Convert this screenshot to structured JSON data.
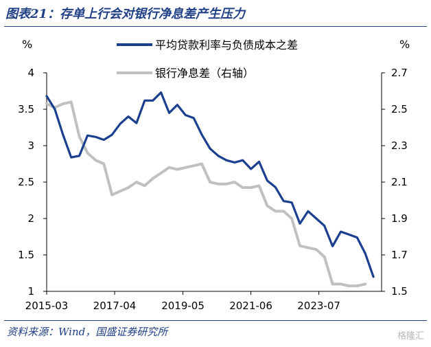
{
  "figure": {
    "title": "图表21：存单上行会对银行净息差产生压力",
    "source": "资料来源：Wind，国盛证券研究所",
    "watermark": "格隆汇"
  },
  "chart_data": {
    "type": "line",
    "x_ticks": [
      "2015-03",
      "2017-04",
      "2019-05",
      "2021-06",
      "2023-07"
    ],
    "left_axis": {
      "unit": "%",
      "ylim": [
        1,
        4
      ],
      "ticks": [
        "1",
        "1.5",
        "2",
        "2.5",
        "3",
        "3.5",
        "4"
      ]
    },
    "right_axis": {
      "unit": "%",
      "ylim": [
        1.5,
        2.7
      ],
      "ticks": [
        "1.5",
        "1.7",
        "1.9",
        "2.1",
        "2.3",
        "2.5",
        "2.7"
      ]
    },
    "legend_position": "top",
    "series": [
      {
        "name": "平均贷款利率与负债成本之差",
        "axis": "left",
        "color": "#1a3f8f",
        "x": [
          2015.25,
          2015.5,
          2015.75,
          2016.0,
          2016.25,
          2016.5,
          2016.75,
          2017.0,
          2017.25,
          2017.5,
          2017.75,
          2018.0,
          2018.25,
          2018.5,
          2018.75,
          2019.0,
          2019.25,
          2019.5,
          2019.75,
          2020.0,
          2020.25,
          2020.5,
          2020.75,
          2021.0,
          2021.25,
          2021.5,
          2021.75,
          2022.0,
          2022.25,
          2022.5,
          2022.75,
          2023.0,
          2023.25,
          2023.5,
          2023.75,
          2024.0,
          2024.25,
          2024.5,
          2024.75,
          2025.0,
          2025.25
        ],
        "values": [
          3.68,
          3.5,
          3.15,
          2.84,
          2.86,
          3.14,
          3.12,
          3.08,
          3.15,
          3.3,
          3.4,
          3.31,
          3.62,
          3.62,
          3.73,
          3.45,
          3.56,
          3.42,
          3.38,
          3.15,
          2.96,
          2.86,
          2.8,
          2.77,
          2.8,
          2.68,
          2.78,
          2.52,
          2.43,
          2.24,
          2.22,
          1.93,
          2.1,
          2.0,
          1.9,
          1.62,
          1.82,
          1.78,
          1.74,
          1.52,
          1.2
        ]
      },
      {
        "name": "银行净息差（右轴）",
        "axis": "right",
        "color": "#c0c0c0",
        "x": [
          2015.25,
          2015.5,
          2015.75,
          2016.0,
          2016.25,
          2016.5,
          2016.75,
          2017.0,
          2017.25,
          2017.5,
          2017.75,
          2018.0,
          2018.25,
          2018.5,
          2018.75,
          2019.0,
          2019.25,
          2019.5,
          2019.75,
          2020.0,
          2020.25,
          2020.5,
          2020.75,
          2021.0,
          2021.25,
          2021.5,
          2021.75,
          2022.0,
          2022.25,
          2022.5,
          2022.75,
          2023.0,
          2023.25,
          2023.5,
          2023.75,
          2024.0,
          2024.25,
          2024.5,
          2024.75,
          2025.0
        ],
        "values": [
          2.53,
          2.51,
          2.53,
          2.54,
          2.35,
          2.26,
          2.22,
          2.2,
          2.03,
          2.05,
          2.07,
          2.1,
          2.08,
          2.12,
          2.15,
          2.18,
          2.17,
          2.18,
          2.19,
          2.2,
          2.1,
          2.09,
          2.09,
          2.1,
          2.07,
          2.07,
          2.08,
          1.97,
          1.94,
          1.94,
          1.9,
          1.75,
          1.74,
          1.73,
          1.69,
          1.54,
          1.54,
          1.53,
          1.53,
          1.54
        ]
      }
    ]
  }
}
